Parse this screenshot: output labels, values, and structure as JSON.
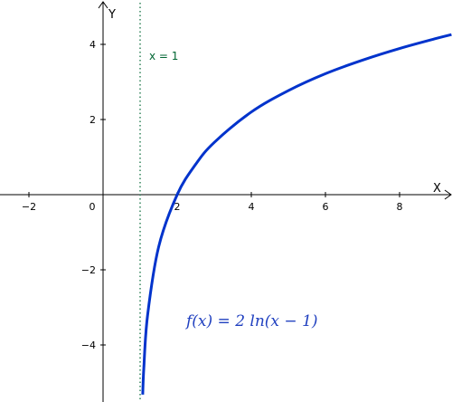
{
  "chart_data": {
    "type": "line",
    "function_label": "f(x)  =  2 ln(x − 1)",
    "asymptote": {
      "x": 1,
      "label": "x = 1"
    },
    "xlabel": "X",
    "ylabel": "Y",
    "xlim": [
      -2.8,
      9.4
    ],
    "ylim": [
      -5.4,
      5.2
    ],
    "x_ticks": [
      {
        "value": -2,
        "label": "−2"
      },
      {
        "value": 0,
        "label": "0"
      },
      {
        "value": 2,
        "label": "2"
      },
      {
        "value": 4,
        "label": "4"
      },
      {
        "value": 6,
        "label": "6"
      },
      {
        "value": 8,
        "label": "8"
      }
    ],
    "y_ticks": [
      {
        "value": 4,
        "label": "4"
      },
      {
        "value": 2,
        "label": "2"
      },
      {
        "value": -2,
        "label": "−2"
      },
      {
        "value": -4,
        "label": "−4"
      }
    ],
    "series": [
      {
        "color": "#0033cc",
        "x": [
          1.07,
          1.1,
          1.2,
          1.5,
          2,
          2.5,
          3,
          4,
          5,
          6,
          7,
          8,
          9,
          9.4
        ],
        "y": [
          -5.32,
          -4.61,
          -3.22,
          -1.39,
          0,
          0.81,
          1.39,
          2.2,
          2.77,
          3.22,
          3.58,
          3.89,
          4.16,
          4.26
        ]
      }
    ],
    "grid": false,
    "colors": {
      "curve": "#0033cc",
      "asymptote": "#006633",
      "axes": "#000000"
    }
  }
}
